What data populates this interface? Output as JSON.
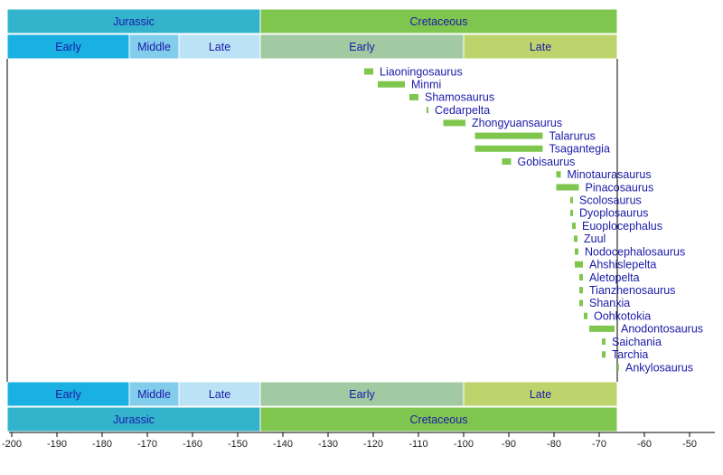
{
  "chart_data": {
    "type": "timeline",
    "xlim": [
      -200,
      -44
    ],
    "xticks": [
      -200,
      -190,
      -180,
      -170,
      -160,
      -150,
      -140,
      -130,
      -120,
      -110,
      -100,
      -90,
      -80,
      -70,
      -60,
      -50
    ],
    "periods": [
      {
        "name": "Jurassic",
        "start": -201,
        "end": -145,
        "color": "#34b4cc"
      },
      {
        "name": "Cretaceous",
        "start": -145,
        "end": -66,
        "color": "#7fc64e"
      }
    ],
    "epochs": [
      {
        "name": "Early",
        "start": -201,
        "end": -174,
        "color": "#1ab0e2"
      },
      {
        "name": "Middle",
        "start": -174,
        "end": -163,
        "color": "#82cdec"
      },
      {
        "name": "Late",
        "start": -163,
        "end": -145,
        "color": "#bce3f5"
      },
      {
        "name": "Early",
        "start": -145,
        "end": -100,
        "color": "#a1c9a2"
      },
      {
        "name": "Late",
        "start": -100,
        "end": -66,
        "color": "#bdd46c"
      }
    ],
    "bar_color": "#7fc64e",
    "items": [
      {
        "name": "Liaoningosaurus",
        "start": -122,
        "end": -120
      },
      {
        "name": "Minmi",
        "start": -119,
        "end": -113
      },
      {
        "name": "Shamosaurus",
        "start": -112,
        "end": -110
      },
      {
        "name": "Cedarpelta",
        "start": -108.2,
        "end": -107.8
      },
      {
        "name": "Zhongyuansaurus",
        "start": -104.5,
        "end": -99.6
      },
      {
        "name": "Talarurus",
        "start": -97.5,
        "end": -82.5
      },
      {
        "name": "Tsagantegia",
        "start": -97.5,
        "end": -82.5
      },
      {
        "name": "Gobisaurus",
        "start": -91.5,
        "end": -89.5
      },
      {
        "name": "Minotaurasaurus",
        "start": -79.5,
        "end": -78.5
      },
      {
        "name": "Pinacosaurus",
        "start": -79.5,
        "end": -74.5
      },
      {
        "name": "Scolosaurus",
        "start": -76.4,
        "end": -75.8
      },
      {
        "name": "Dyoplosaurus",
        "start": -76.4,
        "end": -75.8
      },
      {
        "name": "Euoplocephalus",
        "start": -76,
        "end": -75.2
      },
      {
        "name": "Zuul",
        "start": -75.6,
        "end": -74.8
      },
      {
        "name": "Nodocephalosaurus",
        "start": -75.4,
        "end": -74.6
      },
      {
        "name": "Ahshislepelta",
        "start": -75.4,
        "end": -73.6
      },
      {
        "name": "Aletopelta",
        "start": -74.4,
        "end": -73.6
      },
      {
        "name": "Tianzhenosaurus",
        "start": -74.4,
        "end": -73.6
      },
      {
        "name": "Shanxia",
        "start": -74.4,
        "end": -73.6
      },
      {
        "name": "Oohkotokia",
        "start": -73.4,
        "end": -72.6
      },
      {
        "name": "Anodontosaurus",
        "start": -72.2,
        "end": -66.6
      },
      {
        "name": "Saichania",
        "start": -69.4,
        "end": -68.6
      },
      {
        "name": "Tarchia",
        "start": -69.4,
        "end": -68.6
      },
      {
        "name": "Ankylosaurus",
        "start": -66,
        "end": -65.6
      }
    ]
  }
}
